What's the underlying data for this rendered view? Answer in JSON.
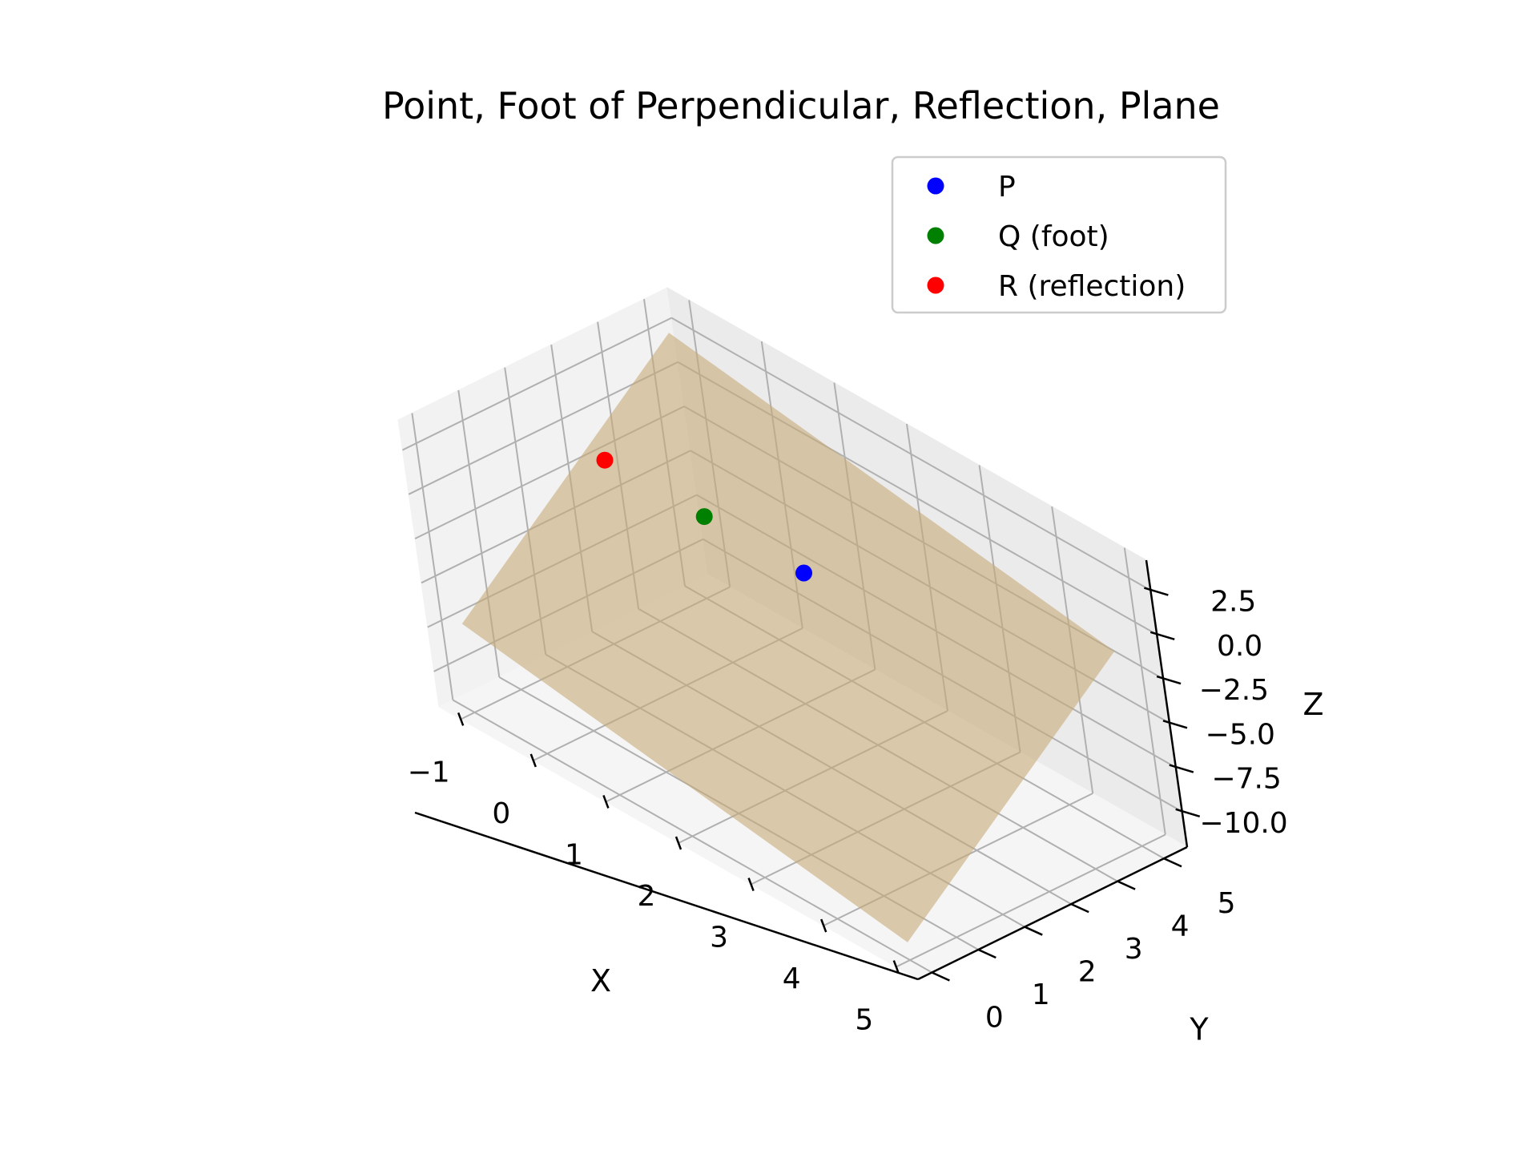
{
  "chart_data": {
    "type": "scatter3d",
    "title": "Point, Foot of Perpendicular, Reflection, Plane",
    "xlabel": "X",
    "ylabel": "Y",
    "zlabel": "Z",
    "xlim": [
      -1.3,
      5.3
    ],
    "ylim": [
      -0.3,
      5.5
    ],
    "zlim": [
      -12,
      4.2
    ],
    "xticks": [
      -1,
      0,
      1,
      2,
      3,
      4,
      5
    ],
    "xtick_labels": [
      "−1",
      "0",
      "1",
      "2",
      "3",
      "4",
      "5"
    ],
    "yticks": [
      0,
      1,
      2,
      3,
      4,
      5
    ],
    "ytick_labels": [
      "0",
      "1",
      "2",
      "3",
      "4",
      "5"
    ],
    "zticks": [
      -10,
      -7.5,
      -5,
      -2.5,
      0,
      2.5
    ],
    "ztick_labels": [
      "−10.0",
      "−7.5",
      "−5.0",
      "−2.5",
      "0.0",
      "2.5"
    ],
    "grid": true,
    "legend_position": "top-right",
    "series": [
      {
        "name": "P",
        "color": "#0000ff",
        "x": 2,
        "y": 3,
        "z": -1
      },
      {
        "name": "Q (foot)",
        "color": "#008000",
        "x": 1,
        "y": 2.5,
        "z": 0.5
      },
      {
        "name": "R (reflection)",
        "color": "#ff0000",
        "x": 0,
        "y": 2,
        "z": 2
      }
    ],
    "plane": {
      "color": "#c8aa78",
      "opacity": 0.6,
      "corners": [
        {
          "x": -1,
          "y": 0,
          "z": -7
        },
        {
          "x": 5,
          "y": 0,
          "z": -11
        },
        {
          "x": 5,
          "y": 5,
          "z": -1
        },
        {
          "x": -1,
          "y": 5,
          "z": 3
        }
      ]
    }
  }
}
